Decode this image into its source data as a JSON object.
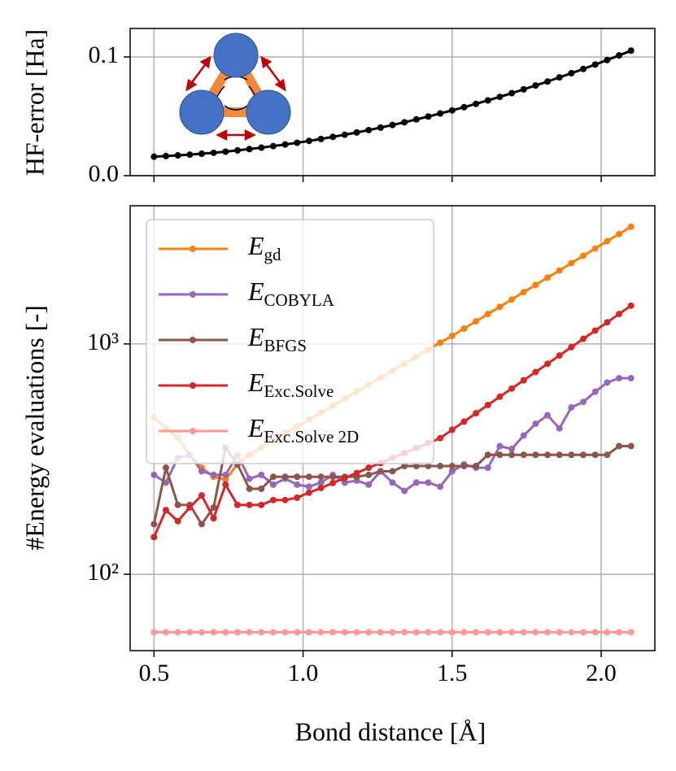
{
  "chart_data": [
    {
      "type": "line",
      "ylabel": "HF-error [Ha]",
      "x": [
        0.5,
        0.54,
        0.58,
        0.62,
        0.66,
        0.7,
        0.74,
        0.78,
        0.82,
        0.86,
        0.9,
        0.94,
        0.98,
        1.02,
        1.06,
        1.1,
        1.14,
        1.18,
        1.22,
        1.26,
        1.3,
        1.34,
        1.38,
        1.42,
        1.46,
        1.5,
        1.54,
        1.58,
        1.62,
        1.66,
        1.7,
        1.74,
        1.78,
        1.82,
        1.86,
        1.9,
        1.94,
        1.98,
        2.02,
        2.06,
        2.1
      ],
      "series": [
        {
          "color": "#000000",
          "values": [
            0.016,
            0.0165,
            0.0171,
            0.0177,
            0.0185,
            0.0193,
            0.0202,
            0.0213,
            0.0224,
            0.0236,
            0.0249,
            0.0263,
            0.0277,
            0.0293,
            0.0309,
            0.0327,
            0.0345,
            0.0364,
            0.0384,
            0.0405,
            0.0427,
            0.045,
            0.0474,
            0.0498,
            0.0524,
            0.055,
            0.0577,
            0.0605,
            0.0634,
            0.0664,
            0.0695,
            0.0727,
            0.076,
            0.0793,
            0.0828,
            0.0863,
            0.0899,
            0.0936,
            0.0974,
            0.1013,
            0.1053
          ]
        }
      ],
      "xlim": [
        0.42,
        2.18
      ],
      "xticks": [
        0.5,
        1,
        1.5,
        2
      ],
      "ylim": [
        0,
        0.124
      ],
      "yticks": [
        {
          "value": 0,
          "label": "0.0"
        },
        0.1
      ],
      "grid": true
    },
    {
      "type": "line",
      "xlabel": "Bond distance [Å]",
      "ylabel": "#Energy evaluations [-]",
      "x": [
        0.5,
        0.54,
        0.58,
        0.62,
        0.66,
        0.7,
        0.74,
        0.78,
        0.82,
        0.86,
        0.9,
        0.94,
        0.98,
        1.02,
        1.06,
        1.1,
        1.14,
        1.18,
        1.22,
        1.26,
        1.3,
        1.34,
        1.38,
        1.42,
        1.46,
        1.5,
        1.54,
        1.58,
        1.62,
        1.66,
        1.7,
        1.74,
        1.78,
        1.82,
        1.86,
        1.9,
        1.94,
        1.98,
        2.02,
        2.06,
        2.1
      ],
      "series": [
        {
          "name": "E_gd",
          "color": "#ff7f0e",
          "values": [
            480,
            430,
            390,
            330,
            290,
            265,
            258,
            300,
            331,
            355,
            381,
            408,
            438,
            470,
            504,
            540,
            579,
            621,
            666,
            714,
            765,
            820,
            879,
            943,
            1012,
            1084,
            1166,
            1253,
            1349,
            1449,
            1560,
            1679,
            1803,
            1941,
            2084,
            2244,
            2415,
            2594,
            2793,
            2999,
            3228
          ]
        },
        {
          "name": "E_COBYLA",
          "color": "#9467bd",
          "values": [
            270,
            250,
            320,
            330,
            280,
            270,
            270,
            330,
            260,
            270,
            245,
            260,
            245,
            240,
            250,
            270,
            250,
            255,
            245,
            280,
            250,
            230,
            250,
            250,
            240,
            280,
            300,
            290,
            290,
            360,
            350,
            400,
            450,
            490,
            430,
            530,
            560,
            620,
            680,
            710,
            710
          ]
        },
        {
          "name": "E_BFGS",
          "color": "#8c564b",
          "values": [
            165,
            290,
            200,
            200,
            165,
            195,
            355,
            300,
            235,
            235,
            265,
            265,
            265,
            265,
            265,
            265,
            265,
            265,
            270,
            280,
            280,
            295,
            295,
            295,
            295,
            295,
            295,
            295,
            330,
            330,
            330,
            330,
            330,
            330,
            330,
            330,
            330,
            330,
            330,
            360,
            360
          ]
        },
        {
          "name": "E_Exc.Solve",
          "color": "#d62728",
          "values": [
            145,
            190,
            170,
            195,
            220,
            175,
            245,
            200,
            200,
            200,
            210,
            210,
            215,
            226,
            237,
            249,
            262,
            275,
            290,
            304,
            320,
            336,
            353,
            371,
            390,
            424,
            460,
            500,
            543,
            590,
            640,
            695,
            755,
            820,
            891,
            968,
            1052,
            1143,
            1241,
            1349,
            1466
          ]
        },
        {
          "name": "E_Exc.Solve 2D",
          "color": "#ff9896",
          "values": [
            56,
            56,
            56,
            56,
            56,
            56,
            56,
            56,
            56,
            56,
            56,
            56,
            56,
            56,
            56,
            56,
            56,
            56,
            56,
            56,
            56,
            56,
            56,
            56,
            56,
            56,
            56,
            56,
            56,
            56,
            56,
            56,
            56,
            56,
            56,
            56,
            56,
            56,
            56,
            56,
            56
          ]
        }
      ],
      "xlim": [
        0.42,
        2.18
      ],
      "xticks": [
        0.5,
        {
          "value": 1,
          "label": "1.0"
        },
        1.5,
        {
          "value": 2,
          "label": "2.0"
        }
      ],
      "ylim": [
        46.6,
        3980
      ],
      "yscale": "log",
      "yticks": [
        {
          "value": 100,
          "label": "10²"
        },
        {
          "value": 1000,
          "label": "10³"
        }
      ],
      "grid": true,
      "legend": "upper left"
    }
  ]
}
